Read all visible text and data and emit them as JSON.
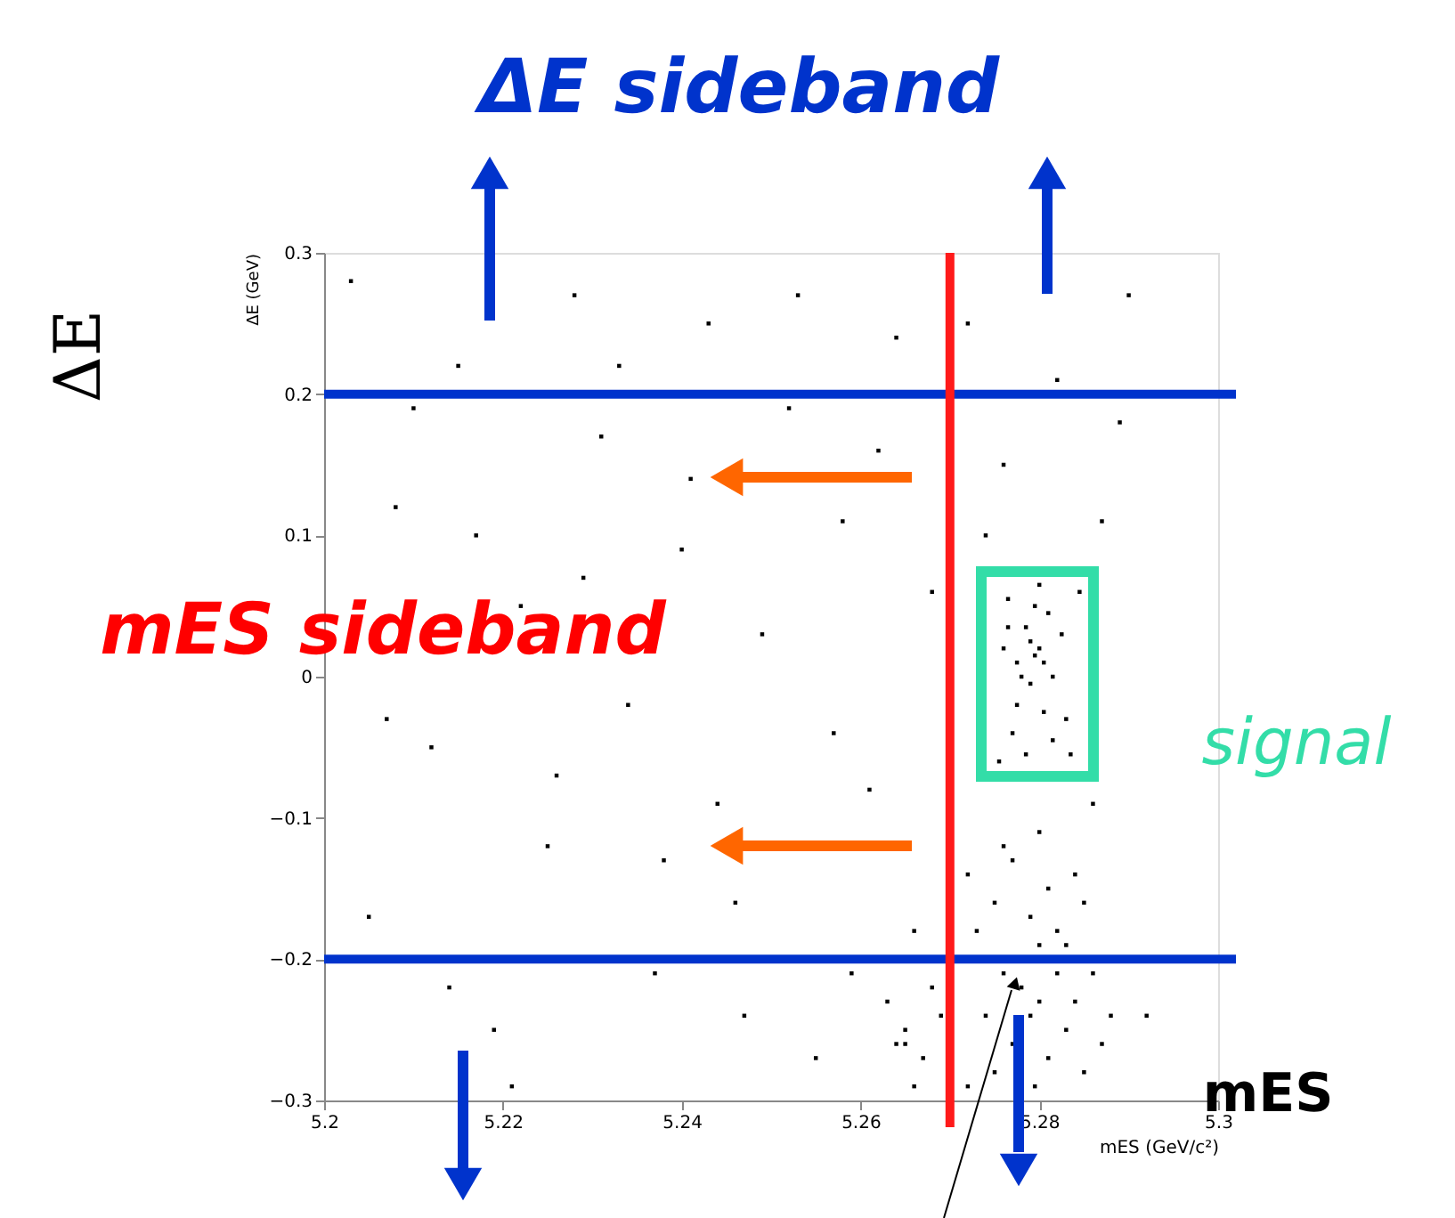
{
  "chart_data": {
    "type": "scatter",
    "xlabel": "mES (GeV/c²)",
    "ylabel": "ΔE (GeV)",
    "annotations": [
      "ΔE sideband",
      "mES sideband",
      "signal",
      "ΔE",
      "mES"
    ],
    "xlim": [
      5.2,
      5.3
    ],
    "xticks": [
      5.2,
      5.22,
      5.24,
      5.26,
      5.28,
      5.3
    ],
    "ylim": [
      -0.3,
      0.3
    ],
    "yticks": [
      -0.3,
      -0.2,
      -0.1,
      0,
      0.1,
      0.2,
      0.3
    ],
    "grid": false,
    "marker": "square",
    "ref_lines": [
      {
        "axis": "y",
        "value": 0.2,
        "color": "#0033cc"
      },
      {
        "axis": "y",
        "value": -0.2,
        "color": "#0033cc"
      },
      {
        "axis": "x",
        "value": 5.27,
        "color": "#ff1a1a"
      }
    ],
    "series": [
      {
        "color": "#000000",
        "x": [
          5.203,
          5.208,
          5.212,
          5.215,
          5.219,
          5.222,
          5.225,
          5.228,
          5.231,
          5.234,
          5.237,
          5.24,
          5.243,
          5.246,
          5.249,
          5.252,
          5.255,
          5.258,
          5.261,
          5.264,
          5.266,
          5.268,
          5.205,
          5.21,
          5.217,
          5.221,
          5.226,
          5.233,
          5.238,
          5.241,
          5.247,
          5.253,
          5.257,
          5.262,
          5.265,
          5.207,
          5.214,
          5.229,
          5.244,
          5.259,
          5.272,
          5.276,
          5.282,
          5.287,
          5.29,
          5.274,
          5.286,
          5.292,
          5.289,
          5.2775,
          5.279,
          5.28,
          5.2785,
          5.2805,
          5.2795,
          5.277,
          5.2815,
          5.276,
          5.2825,
          5.2785,
          5.28,
          5.2765,
          5.283,
          5.2775,
          5.2795,
          5.281,
          5.2845,
          5.2755,
          5.2835,
          5.278,
          5.2805,
          5.2815,
          5.2765,
          5.279,
          5.272,
          5.275,
          5.277,
          5.279,
          5.281,
          5.283,
          5.285,
          5.273,
          5.276,
          5.278,
          5.28,
          5.282,
          5.284,
          5.286,
          5.274,
          5.277,
          5.279,
          5.281,
          5.283,
          5.285,
          5.287,
          5.272,
          5.275,
          5.2795,
          5.28,
          5.282,
          5.276,
          5.284,
          5.263,
          5.265,
          5.267,
          5.268,
          5.266,
          5.264,
          5.269,
          5.288,
          5.28
        ],
        "values": [
          0.28,
          0.12,
          -0.05,
          0.22,
          -0.25,
          0.05,
          -0.12,
          0.27,
          0.17,
          -0.02,
          -0.21,
          0.09,
          0.25,
          -0.16,
          0.03,
          0.19,
          -0.27,
          0.11,
          -0.08,
          0.24,
          -0.18,
          0.06,
          -0.17,
          0.19,
          0.1,
          -0.29,
          -0.07,
          0.22,
          -0.13,
          0.14,
          -0.24,
          0.27,
          -0.04,
          0.16,
          -0.26,
          -0.03,
          -0.22,
          0.07,
          -0.09,
          -0.21,
          0.25,
          0.15,
          0.21,
          0.11,
          0.27,
          0.1,
          -0.09,
          -0.24,
          0.18,
          0.01,
          -0.005,
          0.02,
          0.035,
          -0.025,
          0.05,
          -0.04,
          0.0,
          0.02,
          0.03,
          -0.055,
          0.065,
          0.055,
          -0.03,
          -0.02,
          0.015,
          0.045,
          0.06,
          -0.06,
          -0.055,
          0.0,
          0.01,
          -0.045,
          0.035,
          0.025,
          -0.14,
          -0.16,
          -0.13,
          -0.17,
          -0.15,
          -0.19,
          -0.16,
          -0.18,
          -0.21,
          -0.22,
          -0.19,
          -0.21,
          -0.23,
          -0.21,
          -0.24,
          -0.26,
          -0.24,
          -0.27,
          -0.25,
          -0.28,
          -0.26,
          -0.29,
          -0.28,
          -0.29,
          -0.23,
          -0.18,
          -0.12,
          -0.14,
          -0.23,
          -0.25,
          -0.27,
          -0.22,
          -0.29,
          -0.26,
          -0.24,
          -0.24,
          -0.11
        ]
      }
    ]
  }
}
